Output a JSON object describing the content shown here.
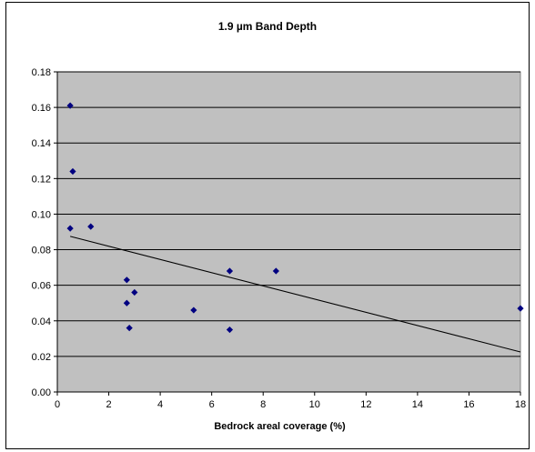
{
  "chart_data": {
    "type": "scatter",
    "title": "1.9 µm Band Depth",
    "xlabel": "Bedrock areal coverage (%)",
    "ylabel": "",
    "xlim": [
      0,
      18
    ],
    "ylim": [
      0,
      0.18
    ],
    "x_ticks": [
      "0",
      "2",
      "4",
      "6",
      "8",
      "10",
      "12",
      "14",
      "16",
      "18"
    ],
    "y_ticks": [
      "0.00",
      "0.02",
      "0.04",
      "0.06",
      "0.08",
      "0.10",
      "0.12",
      "0.14",
      "0.16",
      "0.18"
    ],
    "grid": "horizontal",
    "plot_background": "#c0c0c0",
    "marker_color": "#000080",
    "trendline_color": "#000000",
    "points": [
      {
        "x": 0.5,
        "y": 0.161
      },
      {
        "x": 0.6,
        "y": 0.124
      },
      {
        "x": 0.5,
        "y": 0.092
      },
      {
        "x": 1.3,
        "y": 0.093
      },
      {
        "x": 2.7,
        "y": 0.063
      },
      {
        "x": 2.7,
        "y": 0.05
      },
      {
        "x": 3.0,
        "y": 0.056
      },
      {
        "x": 2.8,
        "y": 0.036
      },
      {
        "x": 5.3,
        "y": 0.046
      },
      {
        "x": 6.7,
        "y": 0.068
      },
      {
        "x": 6.7,
        "y": 0.035
      },
      {
        "x": 8.5,
        "y": 0.068
      },
      {
        "x": 18.0,
        "y": 0.047
      }
    ],
    "trendline": {
      "x": [
        0.5,
        18.0
      ],
      "y": [
        0.0875,
        0.0225
      ]
    }
  }
}
